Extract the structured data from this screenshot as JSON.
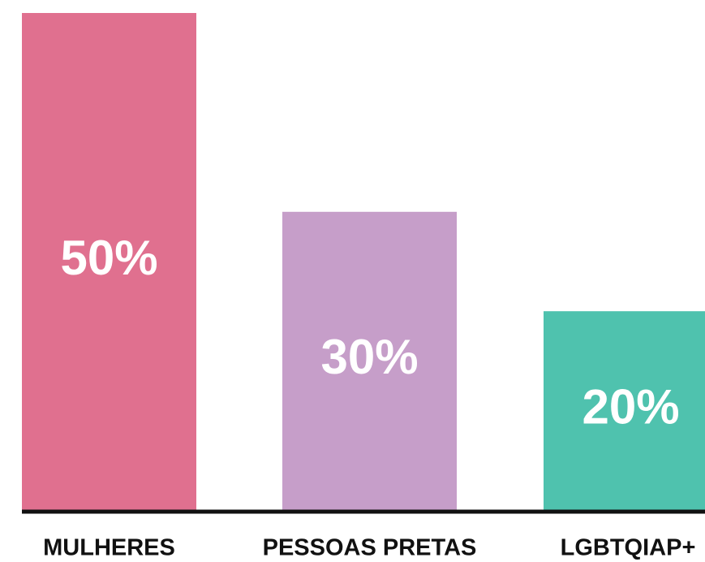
{
  "chart_data": {
    "type": "bar",
    "categories": [
      "MULHERES",
      "PESSOAS PRETAS",
      "LGBTQIAP+"
    ],
    "values": [
      50,
      30,
      20
    ],
    "value_labels": [
      "50%",
      "30%",
      "20%"
    ],
    "colors": [
      "#e0708f",
      "#c69ec9",
      "#4fc2ae"
    ]
  }
}
